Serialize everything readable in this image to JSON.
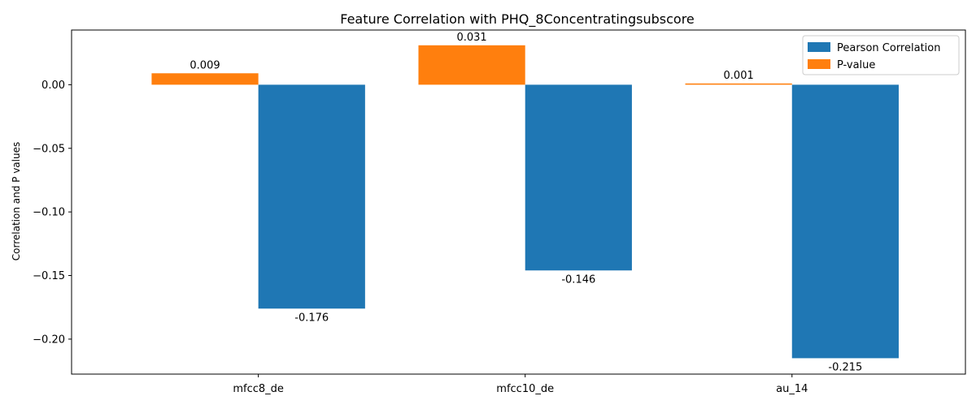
{
  "chart_data": {
    "type": "bar",
    "title": "Feature Correlation with PHQ_8Concentratingsubscore",
    "xlabel": "",
    "ylabel": "Correlation and P values",
    "categories": [
      "mfcc8_de",
      "mfcc10_de",
      "au_14"
    ],
    "series": [
      {
        "name": "P-value",
        "color": "#ff7f0e",
        "values": [
          0.009,
          0.031,
          0.001
        ],
        "labels": [
          "0.009",
          "0.031",
          "0.001"
        ]
      },
      {
        "name": "Pearson Correlation",
        "color": "#1f77b4",
        "values": [
          -0.176,
          -0.146,
          -0.215
        ],
        "labels": [
          "-0.176",
          "-0.146",
          "-0.215"
        ]
      }
    ],
    "legend_order": [
      "Pearson Correlation",
      "P-value"
    ],
    "legend_position": "top-right",
    "ylim": [
      -0.2275,
      0.043
    ],
    "yticks": [
      0.0,
      -0.05,
      -0.1,
      -0.15,
      -0.2
    ],
    "ytick_labels": [
      "0.00",
      "−0.05",
      "−0.10",
      "−0.15",
      "−0.20"
    ],
    "grid": false
  }
}
